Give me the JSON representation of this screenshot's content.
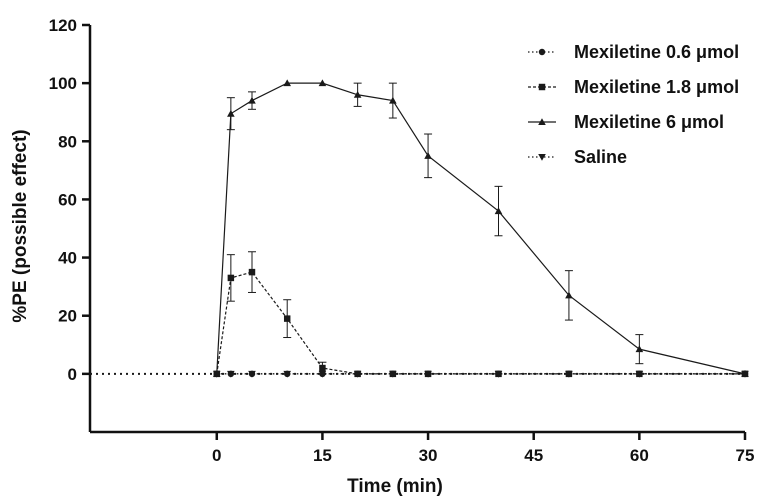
{
  "chart_data": {
    "type": "line",
    "title": "",
    "xlabel": "Time (min)",
    "ylabel": "%PE (possible effect)",
    "xlim": [
      -18,
      75
    ],
    "ylim": [
      -20,
      120
    ],
    "xticks": [
      0,
      15,
      30,
      45,
      60,
      75
    ],
    "yticks": [
      0,
      20,
      40,
      60,
      80,
      100,
      120
    ],
    "grid": false,
    "legend_position": "top-right",
    "series": [
      {
        "name": "Mexiletine 0.6 μmol",
        "marker": "circle",
        "line_style": "dotted",
        "x": [
          0,
          2,
          5,
          10,
          15,
          20,
          25,
          30,
          40,
          50,
          60,
          75
        ],
        "y": [
          0,
          0,
          0,
          0,
          0,
          0,
          0,
          0,
          0,
          0,
          0,
          0
        ],
        "error": [
          0,
          0,
          0,
          0,
          0,
          0,
          0,
          0,
          0,
          0,
          0,
          0
        ]
      },
      {
        "name": "Mexiletine 1.8 μmol",
        "marker": "square",
        "line_style": "dashed",
        "x": [
          0,
          2,
          5,
          10,
          15,
          20,
          25,
          30,
          40,
          50,
          60,
          75
        ],
        "y": [
          0,
          33,
          35,
          19,
          2,
          0,
          0,
          0,
          0,
          0,
          0,
          0
        ],
        "error": [
          0,
          8,
          7,
          6.5,
          2,
          0,
          0,
          0,
          0,
          0,
          0,
          0
        ]
      },
      {
        "name": "Mexiletine 6 μmol",
        "marker": "triangle-up",
        "line_style": "solid",
        "x": [
          0,
          2,
          5,
          10,
          15,
          20,
          25,
          30,
          40,
          50,
          60,
          75
        ],
        "y": [
          0,
          89.5,
          94,
          100,
          100,
          96,
          94,
          75,
          56,
          27,
          8.5,
          0
        ],
        "error": [
          0,
          5.5,
          3,
          0,
          0,
          4,
          6,
          7.5,
          8.5,
          8.5,
          5,
          0
        ]
      },
      {
        "name": "Saline",
        "marker": "triangle-down",
        "line_style": "dotted",
        "x": [
          0,
          2,
          5,
          10,
          15,
          20,
          25,
          30,
          40,
          50,
          60,
          75
        ],
        "y": [
          0,
          0,
          0,
          0,
          0,
          0,
          0,
          0,
          0,
          0,
          0,
          0
        ],
        "error": [
          0,
          0,
          0,
          0,
          0,
          0,
          0,
          0,
          0,
          0,
          0,
          0
        ]
      }
    ],
    "colors": {
      "line": "#1a1a1a",
      "text": "#111111"
    }
  }
}
